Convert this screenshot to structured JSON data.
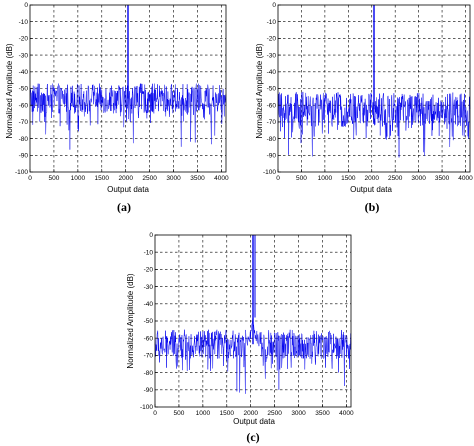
{
  "figure": {
    "background": "#ffffff",
    "line_color": "#0000ee"
  },
  "chart_data": [
    {
      "type": "line",
      "caption": "(a)",
      "xlabel": "Output data",
      "ylabel": "Normalized Amplitude (dB)",
      "xlim": [
        0,
        4096
      ],
      "ylim": [
        -100,
        0
      ],
      "xticks": [
        "0",
        "500",
        "1000",
        "1500",
        "2000",
        "2500",
        "3000",
        "3500",
        "4000"
      ],
      "yticks": [
        "0",
        "-10",
        "-20",
        "-30",
        "-40",
        "-50",
        "-60",
        "-70",
        "-80",
        "-90",
        "-100"
      ],
      "grid": true,
      "series": [
        {
          "peak_x": 2048,
          "peak_db": 0,
          "noise_floor_db_range": [
            -65,
            -47
          ],
          "noise_dips_db_min": -88
        }
      ]
    },
    {
      "type": "line",
      "caption": "(b)",
      "xlabel": "Output data",
      "ylabel": "Normalized Amplitude (dB)",
      "xlim": [
        0,
        4096
      ],
      "ylim": [
        -100,
        0
      ],
      "xticks": [
        "0",
        "500",
        "1000",
        "1500",
        "2000",
        "2500",
        "3000",
        "3500",
        "4000"
      ],
      "yticks": [
        "0",
        "-10",
        "-20",
        "-30",
        "-40",
        "-50",
        "-60",
        "-70",
        "-80",
        "-90",
        "-100"
      ],
      "grid": true,
      "series": [
        {
          "peak_x": 2048,
          "peak_db": 0,
          "noise_floor_db_range": [
            -73,
            -52
          ],
          "noise_dips_db_min": -93
        }
      ]
    },
    {
      "type": "line",
      "caption": "(c)",
      "xlabel": "Output data",
      "ylabel": "Normalized Amplitude (dB)",
      "xlim": [
        0,
        4096
      ],
      "ylim": [
        -100,
        0
      ],
      "xticks": [
        "0",
        "500",
        "1000",
        "1500",
        "2000",
        "2500",
        "3000",
        "3500",
        "4000"
      ],
      "yticks": [
        "0",
        "-10",
        "-20",
        "-30",
        "-40",
        "-50",
        "-60",
        "-70",
        "-80",
        "-90",
        "-100"
      ],
      "grid": true,
      "series": [
        {
          "peak_x": 2048,
          "peak_db": 0,
          "skirt_db": -48,
          "noise_floor_db_range": [
            -72,
            -55
          ],
          "noise_dips_db_min": -95
        }
      ]
    }
  ]
}
